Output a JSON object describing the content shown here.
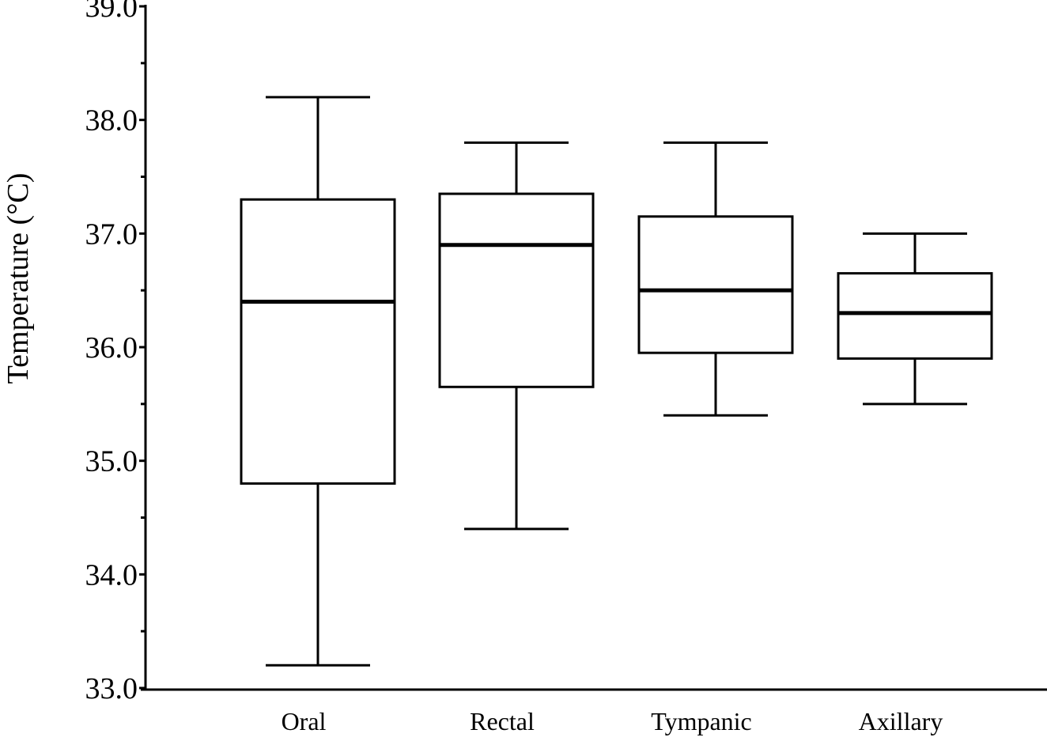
{
  "chart_data": {
    "type": "box",
    "ylabel": "Temperature (°C)",
    "xlabel": "",
    "ylim": [
      33.0,
      39.0
    ],
    "yticks": [
      {
        "value": 33.0,
        "label": "33.0"
      },
      {
        "value": 34.0,
        "label": "34.0"
      },
      {
        "value": 35.0,
        "label": "35.0"
      },
      {
        "value": 36.0,
        "label": "36.0"
      },
      {
        "value": 37.0,
        "label": "37.0"
      },
      {
        "value": 38.0,
        "label": "38.0"
      },
      {
        "value": 39.0,
        "label": "39.0"
      }
    ],
    "minor_tick_step": 0.5,
    "grid": false,
    "categories": [
      "Oral",
      "Rectal",
      "Tympanic",
      "Axillary"
    ],
    "boxes": [
      {
        "category": "Oral",
        "whisker_low": 33.2,
        "q1": 34.8,
        "median": 36.4,
        "q3": 37.3,
        "whisker_high": 38.2
      },
      {
        "category": "Rectal",
        "whisker_low": 34.4,
        "q1": 35.65,
        "median": 36.9,
        "q3": 37.35,
        "whisker_high": 37.8
      },
      {
        "category": "Tympanic",
        "whisker_low": 35.4,
        "q1": 35.95,
        "median": 36.5,
        "q3": 37.15,
        "whisker_high": 37.8
      },
      {
        "category": "Axillary",
        "whisker_low": 35.5,
        "q1": 35.9,
        "median": 36.3,
        "q3": 36.65,
        "whisker_high": 37.0
      }
    ]
  }
}
